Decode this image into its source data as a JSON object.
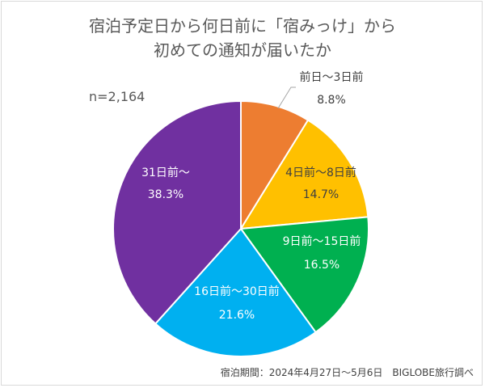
{
  "chart_data": {
    "type": "pie",
    "title": [
      "宿泊予定日から何日前に「宿みっけ」から",
      "初めての通知が届いたか"
    ],
    "sample_size": "n=2,164",
    "start_angle": "top (12 o'clock), clockwise",
    "slices": [
      {
        "label": "前日～3日前",
        "value": 8.8,
        "display": "8.8%",
        "color": "#ED7D31"
      },
      {
        "label": "4日前～8日前",
        "value": 14.7,
        "display": "14.7%",
        "color": "#FFC000"
      },
      {
        "label": "9日前～15日前",
        "value": 16.5,
        "display": "16.5%",
        "color": "#00B050"
      },
      {
        "label": "16日前～30日前",
        "value": 21.6,
        "display": "21.6%",
        "color": "#00B0F0"
      },
      {
        "label": "31日前～",
        "value": 38.3,
        "display": "38.3%",
        "color": "#7030A0"
      }
    ],
    "footnote": "宿泊期間：2024年4月27日～5月6日　BIGLOBE旅行調べ"
  }
}
